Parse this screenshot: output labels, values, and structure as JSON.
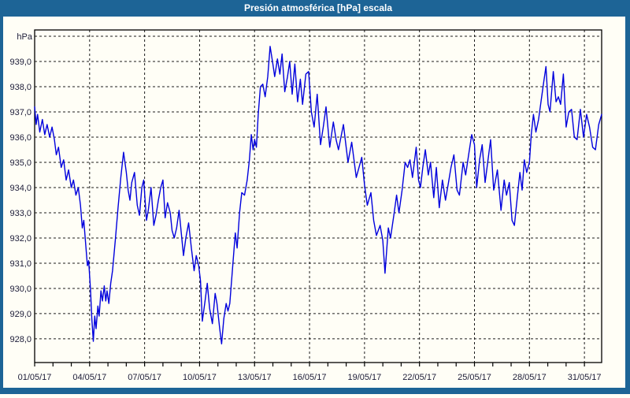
{
  "window": {
    "title": "Presión atmosférica [hPa] escala"
  },
  "colors": {
    "titlebar": "#1d6496",
    "frame": "#1d6496",
    "background": "#fffef6",
    "plot_border": "#000000",
    "grid": "#1c1c1c",
    "tick_text": "#1c1c38",
    "line": "#0000dd"
  },
  "chart_data": {
    "type": "line",
    "title": "Presión atmosférica [hPa] escala",
    "ylabel": "hPa",
    "xlabel": "",
    "grid": "dashed",
    "legend": "none",
    "ylim": [
      927.06,
      940.25
    ],
    "xlim_days": [
      0,
      30.94
    ],
    "y_gridlines": [
      928,
      929,
      930,
      931,
      932,
      933,
      934,
      935,
      936,
      937,
      938,
      939,
      940
    ],
    "y_ticks": [
      {
        "value": 939.0,
        "label": "939,0"
      },
      {
        "value": 938.0,
        "label": "938,0"
      },
      {
        "value": 937.0,
        "label": "937,0"
      },
      {
        "value": 936.0,
        "label": "936,0"
      },
      {
        "value": 935.0,
        "label": "935,0"
      },
      {
        "value": 934.0,
        "label": "934,0"
      },
      {
        "value": 933.0,
        "label": "933,0"
      },
      {
        "value": 932.0,
        "label": "932,0"
      },
      {
        "value": 931.0,
        "label": "931,0"
      },
      {
        "value": 930.0,
        "label": "930,0"
      },
      {
        "value": 929.0,
        "label": "929,0"
      },
      {
        "value": 928.0,
        "label": "928,0"
      }
    ],
    "x_ticks": [
      {
        "day": 0,
        "label": "01/05/17"
      },
      {
        "day": 3,
        "label": "04/05/17"
      },
      {
        "day": 6,
        "label": "07/05/17"
      },
      {
        "day": 9,
        "label": "10/05/17"
      },
      {
        "day": 12,
        "label": "13/05/17"
      },
      {
        "day": 15,
        "label": "16/05/17"
      },
      {
        "day": 18,
        "label": "19/05/17"
      },
      {
        "day": 21,
        "label": "22/05/17"
      },
      {
        "day": 24,
        "label": "25/05/17"
      },
      {
        "day": 27,
        "label": "28/05/17"
      },
      {
        "day": 30,
        "label": "31/05/17"
      }
    ],
    "x_minor_tick_step_days": 1,
    "series": [
      {
        "name": "Presión atmosférica [hPa]",
        "points": [
          [
            0.0,
            937.2
          ],
          [
            0.08,
            936.5
          ],
          [
            0.16,
            936.9
          ],
          [
            0.28,
            936.2
          ],
          [
            0.42,
            936.7
          ],
          [
            0.55,
            936.1
          ],
          [
            0.68,
            936.5
          ],
          [
            0.82,
            936.0
          ],
          [
            0.95,
            936.4
          ],
          [
            1.08,
            935.9
          ],
          [
            1.18,
            935.3
          ],
          [
            1.3,
            935.6
          ],
          [
            1.45,
            934.8
          ],
          [
            1.58,
            935.1
          ],
          [
            1.72,
            934.3
          ],
          [
            1.85,
            934.7
          ],
          [
            2.0,
            934.0
          ],
          [
            2.12,
            934.3
          ],
          [
            2.25,
            933.7
          ],
          [
            2.38,
            934.0
          ],
          [
            2.5,
            933.3
          ],
          [
            2.6,
            932.4
          ],
          [
            2.68,
            932.7
          ],
          [
            2.8,
            931.6
          ],
          [
            2.88,
            930.9
          ],
          [
            2.95,
            931.1
          ],
          [
            3.05,
            929.9
          ],
          [
            3.12,
            928.8
          ],
          [
            3.2,
            927.9
          ],
          [
            3.28,
            928.9
          ],
          [
            3.35,
            928.4
          ],
          [
            3.45,
            929.3
          ],
          [
            3.52,
            928.9
          ],
          [
            3.62,
            929.9
          ],
          [
            3.7,
            929.5
          ],
          [
            3.8,
            930.1
          ],
          [
            3.88,
            929.5
          ],
          [
            3.95,
            929.9
          ],
          [
            4.05,
            929.4
          ],
          [
            4.15,
            930.2
          ],
          [
            4.25,
            930.7
          ],
          [
            4.4,
            931.9
          ],
          [
            4.55,
            933.2
          ],
          [
            4.7,
            934.4
          ],
          [
            4.85,
            935.4
          ],
          [
            5.0,
            934.6
          ],
          [
            5.1,
            933.9
          ],
          [
            5.2,
            933.5
          ],
          [
            5.3,
            934.2
          ],
          [
            5.45,
            934.6
          ],
          [
            5.6,
            933.3
          ],
          [
            5.72,
            932.9
          ],
          [
            5.85,
            934.0
          ],
          [
            5.95,
            934.3
          ],
          [
            6.1,
            932.7
          ],
          [
            6.2,
            933.1
          ],
          [
            6.35,
            934.0
          ],
          [
            6.5,
            932.5
          ],
          [
            6.62,
            932.9
          ],
          [
            6.75,
            933.5
          ],
          [
            6.88,
            934.0
          ],
          [
            7.0,
            934.3
          ],
          [
            7.12,
            932.8
          ],
          [
            7.25,
            933.4
          ],
          [
            7.4,
            933.0
          ],
          [
            7.5,
            932.3
          ],
          [
            7.62,
            932.0
          ],
          [
            7.75,
            932.4
          ],
          [
            7.88,
            933.1
          ],
          [
            8.0,
            932.2
          ],
          [
            8.12,
            931.3
          ],
          [
            8.25,
            932.0
          ],
          [
            8.4,
            932.6
          ],
          [
            8.55,
            931.6
          ],
          [
            8.7,
            930.7
          ],
          [
            8.82,
            931.3
          ],
          [
            8.95,
            930.9
          ],
          [
            9.05,
            930.3
          ],
          [
            9.15,
            928.7
          ],
          [
            9.3,
            929.5
          ],
          [
            9.42,
            930.2
          ],
          [
            9.55,
            929.2
          ],
          [
            9.7,
            928.6
          ],
          [
            9.85,
            929.8
          ],
          [
            9.95,
            929.4
          ],
          [
            10.1,
            928.4
          ],
          [
            10.2,
            927.8
          ],
          [
            10.32,
            928.8
          ],
          [
            10.45,
            929.4
          ],
          [
            10.55,
            929.1
          ],
          [
            10.65,
            929.4
          ],
          [
            10.8,
            930.8
          ],
          [
            10.95,
            932.2
          ],
          [
            11.05,
            931.6
          ],
          [
            11.18,
            933.0
          ],
          [
            11.3,
            933.8
          ],
          [
            11.45,
            933.7
          ],
          [
            11.6,
            934.3
          ],
          [
            11.72,
            935.1
          ],
          [
            11.82,
            936.1
          ],
          [
            11.92,
            935.5
          ],
          [
            12.0,
            935.9
          ],
          [
            12.1,
            935.6
          ],
          [
            12.2,
            936.9
          ],
          [
            12.32,
            938.0
          ],
          [
            12.45,
            938.1
          ],
          [
            12.58,
            937.6
          ],
          [
            12.72,
            938.4
          ],
          [
            12.85,
            939.6
          ],
          [
            13.0,
            938.9
          ],
          [
            13.1,
            938.4
          ],
          [
            13.25,
            939.1
          ],
          [
            13.38,
            938.5
          ],
          [
            13.5,
            939.3
          ],
          [
            13.65,
            937.8
          ],
          [
            13.8,
            938.4
          ],
          [
            13.92,
            939.0
          ],
          [
            14.05,
            937.7
          ],
          [
            14.2,
            938.9
          ],
          [
            14.35,
            937.4
          ],
          [
            14.5,
            938.3
          ],
          [
            14.62,
            937.3
          ],
          [
            14.8,
            938.5
          ],
          [
            14.95,
            938.6
          ],
          [
            15.1,
            937.0
          ],
          [
            15.25,
            936.4
          ],
          [
            15.42,
            937.7
          ],
          [
            15.6,
            935.7
          ],
          [
            15.75,
            936.4
          ],
          [
            15.9,
            937.2
          ],
          [
            16.1,
            935.6
          ],
          [
            16.3,
            936.6
          ],
          [
            16.45,
            935.9
          ],
          [
            16.58,
            935.5
          ],
          [
            16.85,
            936.5
          ],
          [
            17.1,
            935.0
          ],
          [
            17.3,
            935.8
          ],
          [
            17.55,
            934.4
          ],
          [
            17.85,
            935.2
          ],
          [
            18.0,
            934.1
          ],
          [
            18.15,
            933.3
          ],
          [
            18.35,
            933.8
          ],
          [
            18.5,
            932.7
          ],
          [
            18.65,
            932.1
          ],
          [
            18.85,
            932.5
          ],
          [
            19.0,
            931.9
          ],
          [
            19.12,
            930.6
          ],
          [
            19.3,
            932.4
          ],
          [
            19.42,
            932.0
          ],
          [
            19.6,
            932.9
          ],
          [
            19.75,
            933.7
          ],
          [
            19.88,
            933.0
          ],
          [
            20.05,
            933.9
          ],
          [
            20.22,
            935.0
          ],
          [
            20.35,
            934.8
          ],
          [
            20.48,
            935.1
          ],
          [
            20.62,
            934.4
          ],
          [
            20.82,
            935.6
          ],
          [
            20.95,
            934.3
          ],
          [
            21.05,
            934.0
          ],
          [
            21.18,
            934.8
          ],
          [
            21.32,
            935.5
          ],
          [
            21.48,
            934.5
          ],
          [
            21.6,
            935.0
          ],
          [
            21.78,
            933.6
          ],
          [
            21.92,
            934.8
          ],
          [
            22.08,
            933.2
          ],
          [
            22.25,
            934.3
          ],
          [
            22.42,
            933.5
          ],
          [
            22.58,
            934.2
          ],
          [
            22.72,
            934.8
          ],
          [
            22.88,
            935.3
          ],
          [
            23.05,
            933.9
          ],
          [
            23.18,
            933.7
          ],
          [
            23.38,
            935.0
          ],
          [
            23.52,
            934.5
          ],
          [
            23.68,
            935.3
          ],
          [
            23.85,
            936.1
          ],
          [
            24.0,
            935.7
          ],
          [
            24.12,
            934.0
          ],
          [
            24.28,
            935.1
          ],
          [
            24.42,
            935.7
          ],
          [
            24.58,
            934.2
          ],
          [
            24.72,
            935.0
          ],
          [
            24.88,
            935.9
          ],
          [
            25.05,
            933.9
          ],
          [
            25.25,
            934.7
          ],
          [
            25.45,
            933.1
          ],
          [
            25.62,
            934.3
          ],
          [
            25.75,
            933.7
          ],
          [
            25.9,
            934.2
          ],
          [
            26.05,
            932.7
          ],
          [
            26.18,
            932.5
          ],
          [
            26.32,
            933.5
          ],
          [
            26.48,
            934.6
          ],
          [
            26.6,
            933.9
          ],
          [
            26.72,
            935.1
          ],
          [
            26.85,
            934.6
          ],
          [
            27.0,
            935.0
          ],
          [
            27.1,
            936.1
          ],
          [
            27.22,
            936.9
          ],
          [
            27.35,
            936.2
          ],
          [
            27.5,
            936.7
          ],
          [
            27.65,
            937.5
          ],
          [
            27.78,
            938.2
          ],
          [
            27.9,
            938.8
          ],
          [
            28.02,
            937.3
          ],
          [
            28.12,
            937.0
          ],
          [
            28.3,
            938.6
          ],
          [
            28.45,
            937.4
          ],
          [
            28.58,
            937.6
          ],
          [
            28.7,
            937.3
          ],
          [
            28.85,
            938.5
          ],
          [
            29.0,
            936.4
          ],
          [
            29.15,
            937.0
          ],
          [
            29.3,
            937.1
          ],
          [
            29.45,
            936.0
          ],
          [
            29.6,
            935.9
          ],
          [
            29.78,
            937.1
          ],
          [
            29.95,
            936.0
          ],
          [
            30.12,
            936.9
          ],
          [
            30.28,
            936.4
          ],
          [
            30.45,
            935.6
          ],
          [
            30.6,
            935.5
          ],
          [
            30.78,
            936.5
          ],
          [
            30.94,
            936.9
          ]
        ]
      }
    ]
  }
}
